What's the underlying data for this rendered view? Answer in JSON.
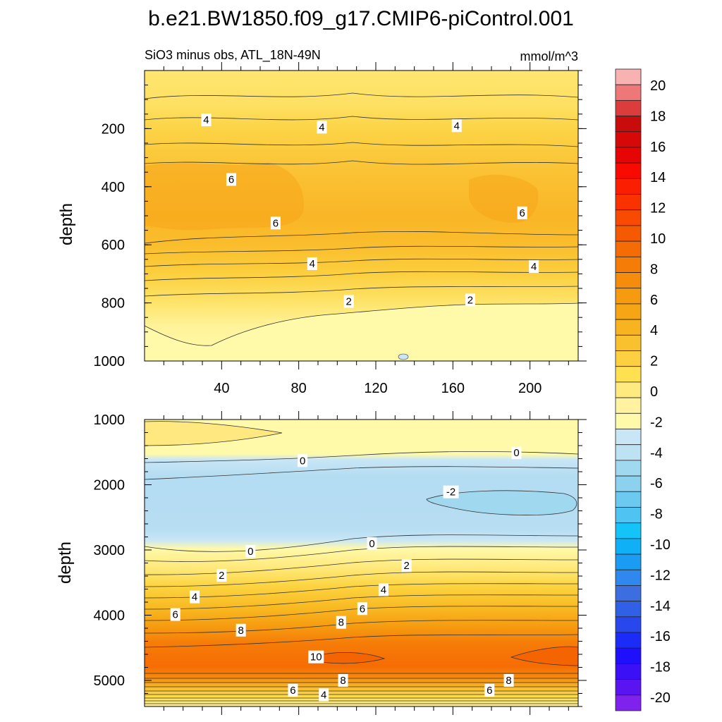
{
  "chart_data": {
    "type": "contour",
    "title": "b.e21.BW1850.f09_g17.CMIP6-piControl.001",
    "subtitle_left": "SiO3 minus obs, ATL_18N-49N",
    "units": "mmol/m^3",
    "colorbar": {
      "levels": [
        -20,
        -18,
        -16,
        -14,
        -12,
        -10,
        -8,
        -6,
        -4,
        -2,
        0,
        2,
        4,
        6,
        8,
        10,
        12,
        14,
        16,
        18,
        20
      ],
      "tick_labels": [
        "20",
        "18",
        "16",
        "14",
        "12",
        "10",
        "8",
        "6",
        "4",
        "2",
        "0",
        "-2",
        "-4",
        "-6",
        "-8",
        "-10",
        "-12",
        "-14",
        "-16",
        "-18",
        "-20"
      ],
      "colors": [
        "#7f22ee",
        "#5a14f2",
        "#3c10f6",
        "#1e10fa",
        "#1c2cf8",
        "#2848ee",
        "#3060e6",
        "#3c6ee2",
        "#2f88ee",
        "#1a9cf2",
        "#10b0f6",
        "#14c4f8",
        "#4ec4f2",
        "#6ccaf0",
        "#8cd2ee",
        "#a0d8f0",
        "#bce2f3",
        "#c8e6f6",
        "#fff9aa",
        "#fff2a0",
        "#ffea80",
        "#ffe050",
        "#fcd040",
        "#fac12e",
        "#f8b420",
        "#f6a614",
        "#f69a10",
        "#f68c0c",
        "#f67c08",
        "#f66c04",
        "#f65a00",
        "#f84a00",
        "#fa3200",
        "#fc1e00",
        "#f80a00",
        "#e60404",
        "#d60808",
        "#c80c0c",
        "#dc3c3c",
        "#ee7878",
        "#f8b2b2"
      ]
    },
    "top_panel": {
      "ylabel": "depth",
      "ylim": [
        0,
        1000
      ],
      "xlim": [
        0,
        225
      ],
      "y_ticks": [
        "200",
        "400",
        "600",
        "800",
        "1000"
      ],
      "y_tick_values": [
        200,
        400,
        600,
        800,
        1000
      ],
      "x_ticks": [
        "40",
        "80",
        "120",
        "160",
        "200"
      ],
      "x_tick_values": [
        40,
        80,
        120,
        160,
        200
      ],
      "bands": [
        {
          "value_range": [
            2,
            4
          ],
          "depth_from": 0,
          "depth_to": 100
        },
        {
          "value_range": [
            4,
            6
          ],
          "depth_from": 100,
          "depth_to": 300
        },
        {
          "value_range": [
            6,
            7
          ],
          "depth_from": 300,
          "depth_to": 560
        },
        {
          "value_range": [
            4,
            6
          ],
          "depth_from": 560,
          "depth_to": 700
        },
        {
          "value_range": [
            2,
            4
          ],
          "depth_from": 700,
          "depth_to": 840
        },
        {
          "value_range": [
            0,
            2
          ],
          "depth_from": 840,
          "depth_to": 1000
        }
      ],
      "contour_labels": [
        {
          "text": "4",
          "x": 32,
          "depth": 170
        },
        {
          "text": "4",
          "x": 92,
          "depth": 195
        },
        {
          "text": "4",
          "x": 162,
          "depth": 190
        },
        {
          "text": "6",
          "x": 45,
          "depth": 375
        },
        {
          "text": "6",
          "x": 68,
          "depth": 525
        },
        {
          "text": "6",
          "x": 196,
          "depth": 490
        },
        {
          "text": "4",
          "x": 87,
          "depth": 665
        },
        {
          "text": "4",
          "x": 202,
          "depth": 675
        },
        {
          "text": "2",
          "x": 106,
          "depth": 795
        },
        {
          "text": "2",
          "x": 169,
          "depth": 790
        }
      ]
    },
    "bottom_panel": {
      "ylabel": "depth",
      "ylim": [
        1000,
        5400
      ],
      "xlim": [
        0,
        225
      ],
      "y_ticks": [
        "1000",
        "2000",
        "3000",
        "4000",
        "5000"
      ],
      "y_tick_values": [
        1000,
        2000,
        3000,
        4000,
        5000
      ],
      "contour_labels": [
        {
          "text": "0",
          "x": 82,
          "depth": 1630
        },
        {
          "text": "0",
          "x": 193,
          "depth": 1510
        },
        {
          "text": "-2",
          "x": 159,
          "depth": 2110
        },
        {
          "text": "0",
          "x": 55,
          "depth": 3020
        },
        {
          "text": "0",
          "x": 118,
          "depth": 2900
        },
        {
          "text": "2",
          "x": 40,
          "depth": 3390
        },
        {
          "text": "2",
          "x": 136,
          "depth": 3240
        },
        {
          "text": "4",
          "x": 26,
          "depth": 3720
        },
        {
          "text": "4",
          "x": 124,
          "depth": 3610
        },
        {
          "text": "6",
          "x": 16,
          "depth": 3990
        },
        {
          "text": "6",
          "x": 113,
          "depth": 3900
        },
        {
          "text": "8",
          "x": 50,
          "depth": 4230
        },
        {
          "text": "8",
          "x": 102,
          "depth": 4110
        },
        {
          "text": "10",
          "x": 89,
          "depth": 4640
        },
        {
          "text": "8",
          "x": 103,
          "depth": 5000
        },
        {
          "text": "8",
          "x": 189,
          "depth": 5000
        },
        {
          "text": "6",
          "x": 77,
          "depth": 5150
        },
        {
          "text": "6",
          "x": 179,
          "depth": 5150
        },
        {
          "text": "4",
          "x": 93,
          "depth": 5220
        }
      ]
    }
  }
}
